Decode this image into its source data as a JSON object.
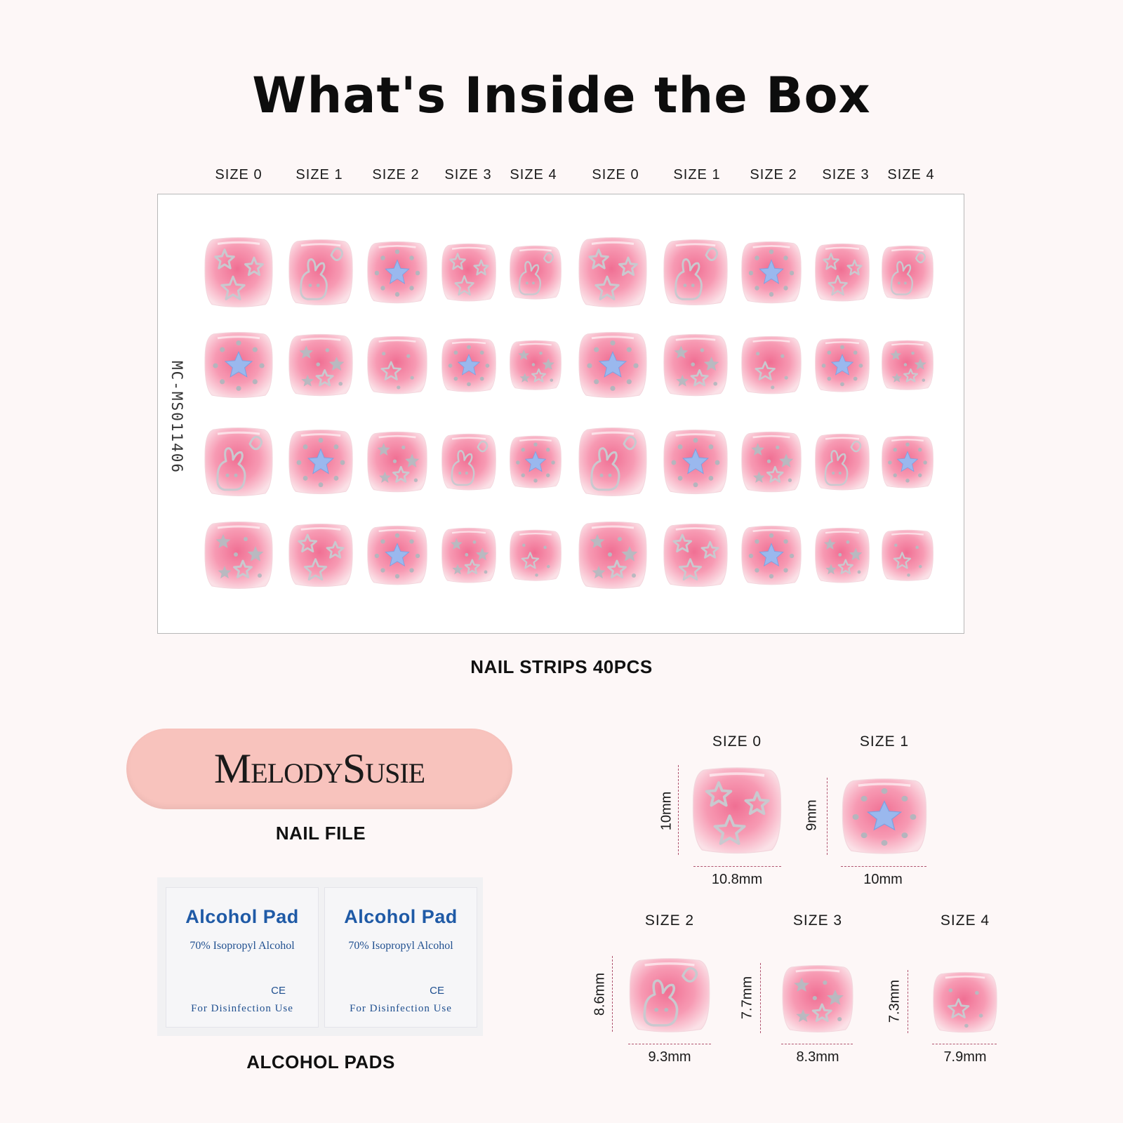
{
  "title": "What's Inside the Box",
  "sheet": {
    "size_labels": [
      "SIZE 0",
      "SIZE 1",
      "SIZE 2",
      "SIZE 3",
      "SIZE 4",
      "SIZE 0",
      "SIZE 1",
      "SIZE 2",
      "SIZE 3",
      "SIZE 4"
    ],
    "code": "MC-MS011406",
    "caption": "NAIL STRIPS 40PCS"
  },
  "nail_file": {
    "brand": "MelodySusie",
    "caption": "NAIL FILE"
  },
  "alcohol_pads": {
    "title": "Alcohol  Pad",
    "subtitle": "70% Isopropyl Alcohol",
    "mark": "CE",
    "usage": "For Disinfection Use",
    "caption": "ALCOHOL PADS"
  },
  "sizes": [
    {
      "label": "SIZE 0",
      "width": "10.8mm",
      "height": "10mm"
    },
    {
      "label": "SIZE 1",
      "width": "10mm",
      "height": "9mm"
    },
    {
      "label": "SIZE 2",
      "width": "9.3mm",
      "height": "8.6mm"
    },
    {
      "label": "SIZE 3",
      "width": "8.3mm",
      "height": "7.7mm"
    },
    {
      "label": "SIZE 4",
      "width": "7.9mm",
      "height": "7.3mm"
    }
  ],
  "colors": {
    "background": "#fdf7f7",
    "nail_pink": "#f06f93",
    "nail_edge": "#fbe1e7",
    "star_blue": "#9ab8ee",
    "file_pink": "#f8c3bd",
    "pad_blue": "#1f5aa6"
  }
}
